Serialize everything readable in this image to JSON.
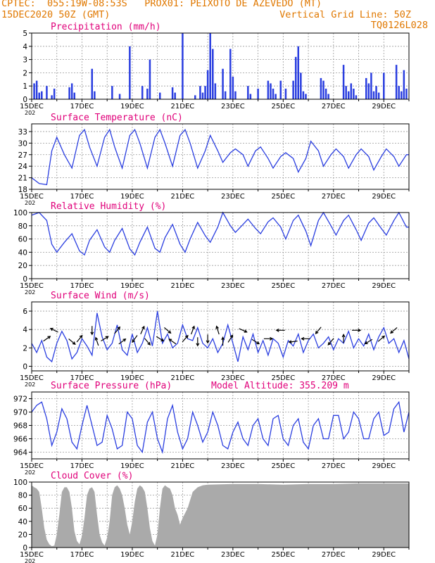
{
  "header": {
    "line1": "CPTEC:  055:19W-08:53S   PROX01: PEIXOTO DE AZEVEDO (MT)",
    "line2_left": "15DEC2020 50Z (GMT)",
    "line2_right": "Vertical Grid Line: 50Z",
    "line3_right": "TQ0126L028"
  },
  "colors": {
    "line": "#2a3ee0",
    "bar": "#2a3ee0",
    "cloud": "#aaaaaa",
    "title": "#e0007a",
    "header": "#e07800",
    "grid": "#9a9a9a"
  },
  "x_axis": {
    "start_day": 15,
    "end_day": 30,
    "tick_days": [
      15,
      17,
      19,
      21,
      23,
      25,
      27,
      29
    ],
    "tick_labels": [
      "15DEC",
      "17DEC",
      "19DEC",
      "21DEC",
      "23DEC",
      "25DEC",
      "27DEC",
      "29DEC"
    ],
    "year_fragment": "202"
  },
  "chart_data": [
    {
      "id": "precip",
      "type": "bar",
      "title": "Precipitation (mm/h)",
      "ylim": [
        0,
        5
      ],
      "yticks": [
        0,
        1,
        2,
        3,
        4,
        5
      ],
      "x": [
        15.1,
        15.2,
        15.3,
        15.4,
        15.6,
        15.8,
        15.9,
        16.5,
        16.6,
        16.7,
        17.4,
        17.5,
        18.2,
        18.5,
        18.9,
        19.4,
        19.6,
        19.7,
        20.1,
        20.6,
        20.7,
        21.0,
        21.5,
        21.7,
        21.8,
        21.9,
        22.0,
        22.1,
        22.2,
        22.3,
        22.6,
        22.7,
        22.9,
        23.0,
        23.1,
        23.6,
        23.7,
        24.0,
        24.4,
        24.5,
        24.6,
        24.7,
        24.9,
        25.1,
        25.4,
        25.5,
        25.6,
        25.7,
        25.8,
        25.9,
        26.5,
        26.6,
        26.7,
        26.8,
        27.4,
        27.5,
        27.6,
        27.7,
        27.8,
        27.9,
        28.3,
        28.4,
        28.5,
        28.6,
        28.7,
        28.8,
        29.0,
        29.5,
        29.6,
        29.7,
        29.8,
        29.9
      ],
      "values": [
        1.2,
        1.4,
        0.5,
        0.6,
        1.0,
        0.3,
        0.8,
        0.9,
        1.2,
        0.5,
        2.3,
        0.6,
        1.0,
        0.4,
        4.0,
        1.0,
        0.8,
        3.0,
        0.5,
        0.9,
        0.5,
        5.0,
        0.3,
        1.0,
        0.5,
        1.0,
        2.2,
        5.0,
        3.8,
        1.2,
        2.3,
        0.6,
        3.8,
        1.7,
        0.6,
        1.0,
        0.4,
        0.8,
        1.4,
        1.2,
        0.8,
        0.4,
        1.4,
        0.8,
        1.4,
        3.2,
        4.0,
        2.0,
        0.6,
        0.4,
        1.6,
        1.4,
        0.8,
        0.4,
        2.6,
        1.0,
        0.6,
        1.2,
        0.8,
        0.3,
        1.6,
        1.2,
        2.0,
        0.6,
        1.0,
        0.5,
        2.0,
        2.6,
        1.0,
        0.6,
        2.2,
        0.8
      ]
    },
    {
      "id": "temp",
      "type": "line",
      "title": "Surface Temperature (nC)",
      "ylim": [
        18,
        35
      ],
      "yticks": [
        18,
        21,
        24,
        27,
        30,
        33
      ],
      "x": [
        15.0,
        15.3,
        15.6,
        15.8,
        16.0,
        16.3,
        16.6,
        16.9,
        17.1,
        17.3,
        17.6,
        17.9,
        18.1,
        18.3,
        18.6,
        18.9,
        19.1,
        19.3,
        19.6,
        19.9,
        20.1,
        20.3,
        20.6,
        20.9,
        21.1,
        21.3,
        21.6,
        21.9,
        22.1,
        22.4,
        22.6,
        22.9,
        23.1,
        23.4,
        23.6,
        23.9,
        24.1,
        24.4,
        24.6,
        24.9,
        25.1,
        25.4,
        25.6,
        25.9,
        26.1,
        26.4,
        26.6,
        26.9,
        27.1,
        27.4,
        27.6,
        27.9,
        28.1,
        28.4,
        28.6,
        28.9,
        29.1,
        29.4,
        29.6,
        29.9,
        30.0
      ],
      "values": [
        21,
        19.5,
        19.2,
        28,
        31.5,
        27,
        23.5,
        32,
        33.5,
        29,
        24,
        31.5,
        33.5,
        29,
        23.5,
        32,
        33.5,
        30,
        23.5,
        31.5,
        33.5,
        30,
        24,
        32,
        33.5,
        30,
        23.5,
        28,
        32,
        28,
        25,
        27.5,
        28.5,
        27,
        24,
        28,
        29,
        26,
        23.5,
        26.5,
        27.5,
        26,
        22.5,
        26,
        30.5,
        28,
        24,
        27,
        28.5,
        26.5,
        23.5,
        27,
        28.5,
        26.5,
        23,
        26.5,
        28.5,
        26.5,
        24,
        27,
        27
      ]
    },
    {
      "id": "rh",
      "type": "line",
      "title": "Relative Humidity (%)",
      "ylim": [
        0,
        100
      ],
      "yticks": [
        0,
        20,
        40,
        60,
        80,
        100
      ],
      "x": [
        15.0,
        15.3,
        15.6,
        15.8,
        16.0,
        16.3,
        16.6,
        16.9,
        17.1,
        17.3,
        17.6,
        17.9,
        18.1,
        18.3,
        18.6,
        18.9,
        19.1,
        19.3,
        19.6,
        19.9,
        20.1,
        20.3,
        20.6,
        20.9,
        21.1,
        21.3,
        21.6,
        21.9,
        22.1,
        22.4,
        22.6,
        22.9,
        23.1,
        23.4,
        23.6,
        23.9,
        24.1,
        24.4,
        24.6,
        24.9,
        25.1,
        25.4,
        25.6,
        25.9,
        26.1,
        26.4,
        26.6,
        26.9,
        27.1,
        27.4,
        27.6,
        27.9,
        28.1,
        28.4,
        28.6,
        28.9,
        29.1,
        29.4,
        29.6,
        29.9,
        30.0
      ],
      "values": [
        96,
        100,
        88,
        52,
        40,
        55,
        68,
        42,
        36,
        58,
        74,
        48,
        40,
        58,
        76,
        45,
        36,
        55,
        78,
        46,
        40,
        62,
        82,
        52,
        40,
        60,
        85,
        65,
        55,
        78,
        100,
        80,
        70,
        82,
        90,
        76,
        68,
        86,
        92,
        78,
        60,
        88,
        96,
        72,
        50,
        88,
        100,
        80,
        66,
        88,
        96,
        74,
        58,
        84,
        92,
        76,
        66,
        88,
        100,
        78,
        78
      ]
    },
    {
      "id": "wind",
      "type": "line",
      "title": "Surface Wind (m/s)",
      "ylim": [
        -0.5,
        7
      ],
      "yticks": [
        0,
        2,
        4,
        6
      ],
      "x": [
        15.0,
        15.2,
        15.4,
        15.6,
        15.8,
        16.0,
        16.2,
        16.4,
        16.6,
        16.8,
        17.0,
        17.2,
        17.4,
        17.6,
        17.8,
        18.0,
        18.2,
        18.4,
        18.6,
        18.8,
        19.0,
        19.2,
        19.4,
        19.6,
        19.8,
        20.0,
        20.2,
        20.4,
        20.6,
        20.8,
        21.0,
        21.2,
        21.4,
        21.6,
        21.8,
        22.0,
        22.2,
        22.4,
        22.6,
        22.8,
        23.0,
        23.2,
        23.4,
        23.6,
        23.8,
        24.0,
        24.2,
        24.4,
        24.6,
        24.8,
        25.0,
        25.2,
        25.4,
        25.6,
        25.8,
        26.0,
        26.2,
        26.4,
        26.6,
        26.8,
        27.0,
        27.2,
        27.4,
        27.6,
        27.8,
        28.0,
        28.2,
        28.4,
        28.6,
        28.8,
        29.0,
        29.2,
        29.4,
        29.6,
        29.8,
        30.0
      ],
      "values": [
        2.5,
        1.5,
        2.8,
        1.0,
        0.5,
        2.5,
        3.8,
        2.8,
        0.8,
        1.5,
        3.0,
        2.2,
        1.2,
        5.8,
        3.2,
        1.8,
        2.5,
        4.5,
        1.8,
        1.2,
        3.5,
        1.5,
        2.5,
        4.2,
        2.2,
        6.0,
        2.5,
        3.5,
        2.0,
        2.5,
        4.5,
        3.0,
        2.8,
        4.2,
        2.5,
        2.0,
        3.0,
        1.5,
        2.5,
        4.5,
        2.5,
        0.5,
        3.2,
        1.8,
        3.5,
        1.5,
        2.8,
        1.2,
        3.0,
        2.5,
        1.0,
        2.8,
        2.2,
        3.5,
        1.5,
        2.8,
        3.5,
        2.0,
        2.5,
        3.2,
        1.8,
        3.0,
        2.5,
        3.8,
        2.0,
        3.0,
        2.2,
        3.5,
        1.8,
        3.2,
        4.2,
        2.5,
        3.0,
        1.5,
        2.8,
        0.8
      ]
    },
    {
      "id": "pressure",
      "type": "line",
      "title": "Surface Pressure (hPa)",
      "subtitle": "Model Altitude: 355.209 m",
      "ylim": [
        963,
        973
      ],
      "yticks": [
        964,
        966,
        968,
        970,
        972
      ],
      "x": [
        15.0,
        15.2,
        15.4,
        15.6,
        15.8,
        16.0,
        16.2,
        16.4,
        16.6,
        16.8,
        17.0,
        17.2,
        17.4,
        17.6,
        17.8,
        18.0,
        18.2,
        18.4,
        18.6,
        18.8,
        19.0,
        19.2,
        19.4,
        19.6,
        19.8,
        20.0,
        20.2,
        20.4,
        20.6,
        20.8,
        21.0,
        21.2,
        21.4,
        21.6,
        21.8,
        22.0,
        22.2,
        22.4,
        22.6,
        22.8,
        23.0,
        23.2,
        23.4,
        23.6,
        23.8,
        24.0,
        24.2,
        24.4,
        24.6,
        24.8,
        25.0,
        25.2,
        25.4,
        25.6,
        25.8,
        26.0,
        26.2,
        26.4,
        26.6,
        26.8,
        27.0,
        27.2,
        27.4,
        27.6,
        27.8,
        28.0,
        28.2,
        28.4,
        28.6,
        28.8,
        29.0,
        29.2,
        29.4,
        29.6,
        29.8,
        30.0
      ],
      "values": [
        970,
        971,
        971.5,
        969,
        965,
        967,
        970.5,
        969,
        965.5,
        964.5,
        968,
        971,
        968,
        965,
        965.5,
        969.5,
        967.5,
        964.5,
        965,
        970,
        969,
        965,
        964,
        968.5,
        970,
        966,
        964,
        969,
        971,
        967,
        964.5,
        966,
        970,
        968,
        965.5,
        967,
        970,
        968,
        965,
        964.5,
        967,
        968.5,
        966,
        965,
        968,
        969,
        966,
        965,
        969,
        969.5,
        966,
        965,
        968,
        969,
        965.5,
        964.5,
        968,
        969,
        966,
        966,
        969.5,
        969.5,
        966,
        967,
        970,
        969,
        966,
        966,
        969,
        970,
        966.5,
        967,
        970.5,
        971.5,
        967,
        970
      ]
    },
    {
      "id": "cloud",
      "type": "area",
      "title": "Cloud Cover (%)",
      "ylim": [
        0,
        100
      ],
      "yticks": [
        0,
        20,
        40,
        60,
        80,
        100
      ],
      "x": [
        15.0,
        15.1,
        15.2,
        15.3,
        15.4,
        15.5,
        15.6,
        15.7,
        15.8,
        15.9,
        16.0,
        16.1,
        16.2,
        16.3,
        16.4,
        16.5,
        16.6,
        16.7,
        16.8,
        16.9,
        17.0,
        17.1,
        17.2,
        17.3,
        17.4,
        17.5,
        17.6,
        17.7,
        17.8,
        17.9,
        18.0,
        18.1,
        18.2,
        18.3,
        18.4,
        18.5,
        18.6,
        18.7,
        18.8,
        18.9,
        19.0,
        19.1,
        19.2,
        19.3,
        19.4,
        19.5,
        19.6,
        19.7,
        19.8,
        19.9,
        20.0,
        20.1,
        20.2,
        20.3,
        20.4,
        20.5,
        20.6,
        20.7,
        20.8,
        20.9,
        21.0,
        21.2,
        21.4,
        21.6,
        21.8,
        22.0,
        23.0,
        24.0,
        25.0,
        26.0,
        27.0,
        28.0,
        29.0,
        30.0
      ],
      "values": [
        95,
        92,
        90,
        85,
        60,
        30,
        12,
        5,
        2,
        3,
        20,
        50,
        85,
        92,
        92,
        85,
        60,
        25,
        10,
        5,
        18,
        45,
        80,
        90,
        92,
        85,
        50,
        20,
        8,
        3,
        15,
        40,
        80,
        92,
        95,
        90,
        80,
        60,
        35,
        20,
        40,
        70,
        90,
        95,
        92,
        85,
        60,
        30,
        10,
        3,
        20,
        60,
        90,
        95,
        92,
        90,
        80,
        60,
        50,
        35,
        45,
        60,
        85,
        92,
        95,
        96,
        97,
        97,
        96,
        97,
        97,
        98,
        98,
        98
      ]
    }
  ],
  "wind_vectors": {
    "x": [
      15.6,
      15.9,
      16.6,
      16.9,
      17.4,
      17.6,
      17.9,
      18.4,
      18.6,
      19.1,
      19.4,
      19.6,
      20.1,
      20.4,
      20.6,
      21.1,
      21.4,
      21.6,
      22.0,
      22.4,
      22.6,
      22.9,
      23.4,
      23.9,
      24.4,
      24.9,
      25.4,
      25.9,
      26.4,
      26.9,
      27.4,
      27.9,
      28.4,
      28.9,
      29.4
    ],
    "u": [
      0.7,
      -0.6,
      0.6,
      0.5,
      0.0,
      -0.3,
      0.8,
      0.5,
      0.8,
      -0.5,
      0.4,
      0.5,
      0.8,
      0.7,
      -0.7,
      0.6,
      0.3,
      0.0,
      0.0,
      -0.3,
      0.0,
      0.5,
      0.9,
      0.8,
      0.9,
      -0.9,
      -0.8,
      -0.9,
      -0.5,
      -0.6,
      0.0,
      0.9,
      -0.8,
      0.7,
      -0.7
    ],
    "v": [
      0.5,
      0.3,
      -0.5,
      0.6,
      -1.0,
      0.9,
      0.5,
      0.6,
      0.6,
      -0.7,
      0.9,
      -0.6,
      -0.5,
      -0.6,
      0.5,
      0.7,
      0.8,
      -1.0,
      -0.9,
      1.0,
      0.9,
      0.8,
      -0.4,
      -0.5,
      0.0,
      0.0,
      -0.1,
      0.0,
      -0.6,
      -0.7,
      1.0,
      0.0,
      -0.5,
      0.6,
      -0.6
    ]
  }
}
